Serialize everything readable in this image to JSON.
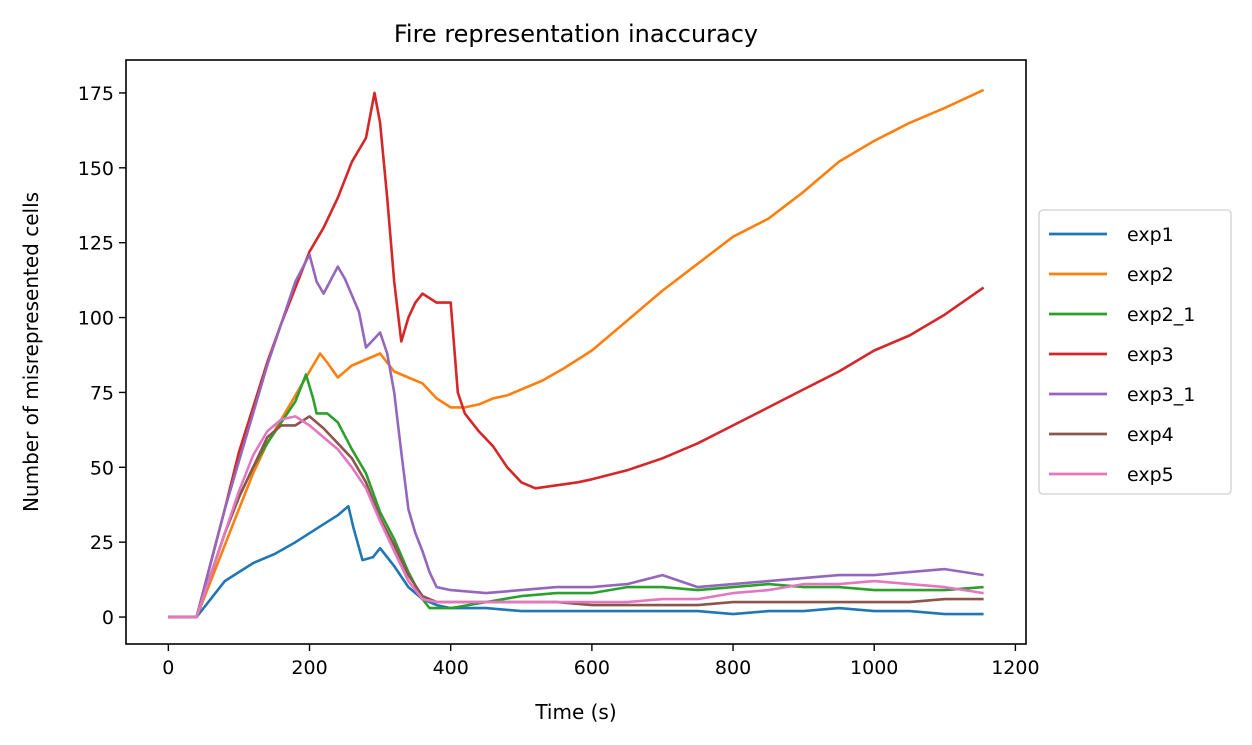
{
  "chart_data": {
    "type": "line",
    "title": "Fire representation inaccuracy",
    "xlabel": "Time (s)",
    "ylabel": "Number of misrepresented cells",
    "xlim": [
      -60,
      1215
    ],
    "ylim": [
      -9,
      186
    ],
    "xticks": [
      0,
      200,
      400,
      600,
      800,
      1000,
      1200
    ],
    "yticks": [
      0,
      25,
      50,
      75,
      100,
      125,
      150,
      175
    ],
    "grid": false,
    "legend_position": "right, outside plot",
    "series": [
      {
        "name": "exp1",
        "color": "#1f77b4",
        "points": [
          [
            0,
            0
          ],
          [
            40,
            0
          ],
          [
            60,
            6
          ],
          [
            80,
            12
          ],
          [
            100,
            15
          ],
          [
            120,
            18
          ],
          [
            150,
            21
          ],
          [
            180,
            25
          ],
          [
            200,
            28
          ],
          [
            220,
            31
          ],
          [
            240,
            34
          ],
          [
            255,
            37
          ],
          [
            262,
            30
          ],
          [
            275,
            19
          ],
          [
            290,
            20
          ],
          [
            300,
            23
          ],
          [
            320,
            17
          ],
          [
            340,
            10
          ],
          [
            360,
            6
          ],
          [
            380,
            4
          ],
          [
            400,
            3
          ],
          [
            450,
            3
          ],
          [
            500,
            2
          ],
          [
            550,
            2
          ],
          [
            600,
            2
          ],
          [
            650,
            2
          ],
          [
            700,
            2
          ],
          [
            750,
            2
          ],
          [
            800,
            1
          ],
          [
            850,
            2
          ],
          [
            900,
            2
          ],
          [
            950,
            3
          ],
          [
            1000,
            2
          ],
          [
            1050,
            2
          ],
          [
            1100,
            1
          ],
          [
            1155,
            1
          ]
        ]
      },
      {
        "name": "exp2",
        "color": "#ff7f0e",
        "points": [
          [
            0,
            0
          ],
          [
            40,
            0
          ],
          [
            60,
            12
          ],
          [
            80,
            24
          ],
          [
            100,
            36
          ],
          [
            120,
            48
          ],
          [
            140,
            58
          ],
          [
            160,
            66
          ],
          [
            180,
            74
          ],
          [
            200,
            82
          ],
          [
            215,
            88
          ],
          [
            225,
            85
          ],
          [
            240,
            80
          ],
          [
            260,
            84
          ],
          [
            280,
            86
          ],
          [
            300,
            88
          ],
          [
            320,
            82
          ],
          [
            340,
            80
          ],
          [
            360,
            78
          ],
          [
            380,
            73
          ],
          [
            400,
            70
          ],
          [
            420,
            70
          ],
          [
            440,
            71
          ],
          [
            460,
            73
          ],
          [
            480,
            74
          ],
          [
            500,
            76
          ],
          [
            530,
            79
          ],
          [
            560,
            83
          ],
          [
            600,
            89
          ],
          [
            650,
            99
          ],
          [
            700,
            109
          ],
          [
            750,
            118
          ],
          [
            800,
            127
          ],
          [
            850,
            133
          ],
          [
            900,
            142
          ],
          [
            950,
            152
          ],
          [
            1000,
            159
          ],
          [
            1050,
            165
          ],
          [
            1100,
            170
          ],
          [
            1155,
            176
          ]
        ]
      },
      {
        "name": "exp2_1",
        "color": "#2ca02c",
        "points": [
          [
            0,
            0
          ],
          [
            40,
            0
          ],
          [
            60,
            14
          ],
          [
            80,
            28
          ],
          [
            100,
            40
          ],
          [
            120,
            50
          ],
          [
            140,
            58
          ],
          [
            160,
            65
          ],
          [
            180,
            72
          ],
          [
            195,
            81
          ],
          [
            205,
            73
          ],
          [
            210,
            68
          ],
          [
            225,
            68
          ],
          [
            240,
            65
          ],
          [
            260,
            56
          ],
          [
            280,
            48
          ],
          [
            300,
            35
          ],
          [
            320,
            26
          ],
          [
            340,
            15
          ],
          [
            360,
            6
          ],
          [
            370,
            3
          ],
          [
            400,
            3
          ],
          [
            450,
            5
          ],
          [
            500,
            7
          ],
          [
            550,
            8
          ],
          [
            600,
            8
          ],
          [
            650,
            10
          ],
          [
            700,
            10
          ],
          [
            750,
            9
          ],
          [
            800,
            10
          ],
          [
            850,
            11
          ],
          [
            900,
            10
          ],
          [
            950,
            10
          ],
          [
            1000,
            9
          ],
          [
            1050,
            9
          ],
          [
            1100,
            9
          ],
          [
            1155,
            10
          ]
        ]
      },
      {
        "name": "exp3",
        "color": "#d62728",
        "points": [
          [
            0,
            0
          ],
          [
            40,
            0
          ],
          [
            60,
            18
          ],
          [
            80,
            36
          ],
          [
            100,
            55
          ],
          [
            120,
            70
          ],
          [
            140,
            85
          ],
          [
            160,
            98
          ],
          [
            180,
            110
          ],
          [
            200,
            122
          ],
          [
            220,
            130
          ],
          [
            240,
            140
          ],
          [
            260,
            152
          ],
          [
            280,
            160
          ],
          [
            292,
            175
          ],
          [
            300,
            165
          ],
          [
            310,
            140
          ],
          [
            320,
            112
          ],
          [
            330,
            92
          ],
          [
            340,
            100
          ],
          [
            350,
            105
          ],
          [
            360,
            108
          ],
          [
            380,
            105
          ],
          [
            400,
            105
          ],
          [
            410,
            75
          ],
          [
            420,
            68
          ],
          [
            440,
            62
          ],
          [
            460,
            57
          ],
          [
            480,
            50
          ],
          [
            500,
            45
          ],
          [
            520,
            43
          ],
          [
            550,
            44
          ],
          [
            580,
            45
          ],
          [
            600,
            46
          ],
          [
            650,
            49
          ],
          [
            700,
            53
          ],
          [
            750,
            58
          ],
          [
            800,
            64
          ],
          [
            850,
            70
          ],
          [
            900,
            76
          ],
          [
            950,
            82
          ],
          [
            1000,
            89
          ],
          [
            1050,
            94
          ],
          [
            1100,
            101
          ],
          [
            1155,
            110
          ]
        ]
      },
      {
        "name": "exp3_1",
        "color": "#9467bd",
        "points": [
          [
            0,
            0
          ],
          [
            40,
            0
          ],
          [
            60,
            18
          ],
          [
            80,
            36
          ],
          [
            100,
            52
          ],
          [
            120,
            68
          ],
          [
            140,
            84
          ],
          [
            160,
            98
          ],
          [
            180,
            112
          ],
          [
            200,
            121
          ],
          [
            210,
            112
          ],
          [
            220,
            108
          ],
          [
            240,
            117
          ],
          [
            250,
            113
          ],
          [
            270,
            102
          ],
          [
            280,
            90
          ],
          [
            300,
            95
          ],
          [
            310,
            88
          ],
          [
            320,
            75
          ],
          [
            330,
            55
          ],
          [
            340,
            36
          ],
          [
            350,
            28
          ],
          [
            360,
            22
          ],
          [
            370,
            15
          ],
          [
            380,
            10
          ],
          [
            400,
            9
          ],
          [
            450,
            8
          ],
          [
            500,
            9
          ],
          [
            550,
            10
          ],
          [
            600,
            10
          ],
          [
            650,
            11
          ],
          [
            700,
            14
          ],
          [
            750,
            10
          ],
          [
            800,
            11
          ],
          [
            850,
            12
          ],
          [
            900,
            13
          ],
          [
            950,
            14
          ],
          [
            1000,
            14
          ],
          [
            1050,
            15
          ],
          [
            1100,
            16
          ],
          [
            1155,
            14
          ]
        ]
      },
      {
        "name": "exp4",
        "color": "#8c564b",
        "points": [
          [
            0,
            0
          ],
          [
            40,
            0
          ],
          [
            60,
            14
          ],
          [
            80,
            28
          ],
          [
            100,
            40
          ],
          [
            120,
            50
          ],
          [
            140,
            60
          ],
          [
            160,
            64
          ],
          [
            180,
            64
          ],
          [
            200,
            67
          ],
          [
            220,
            63
          ],
          [
            240,
            58
          ],
          [
            260,
            53
          ],
          [
            280,
            45
          ],
          [
            300,
            33
          ],
          [
            320,
            24
          ],
          [
            340,
            14
          ],
          [
            360,
            7
          ],
          [
            380,
            5
          ],
          [
            400,
            5
          ],
          [
            450,
            5
          ],
          [
            500,
            5
          ],
          [
            550,
            5
          ],
          [
            600,
            4
          ],
          [
            650,
            4
          ],
          [
            700,
            4
          ],
          [
            750,
            4
          ],
          [
            800,
            5
          ],
          [
            850,
            5
          ],
          [
            900,
            5
          ],
          [
            950,
            5
          ],
          [
            1000,
            5
          ],
          [
            1050,
            5
          ],
          [
            1100,
            6
          ],
          [
            1155,
            6
          ]
        ]
      },
      {
        "name": "exp5",
        "color": "#e377c2",
        "points": [
          [
            0,
            0
          ],
          [
            40,
            0
          ],
          [
            60,
            14
          ],
          [
            80,
            28
          ],
          [
            100,
            42
          ],
          [
            120,
            54
          ],
          [
            140,
            62
          ],
          [
            160,
            66
          ],
          [
            180,
            67
          ],
          [
            200,
            64
          ],
          [
            220,
            60
          ],
          [
            240,
            56
          ],
          [
            260,
            50
          ],
          [
            280,
            43
          ],
          [
            300,
            32
          ],
          [
            320,
            22
          ],
          [
            340,
            12
          ],
          [
            360,
            6
          ],
          [
            380,
            5
          ],
          [
            400,
            5
          ],
          [
            450,
            5
          ],
          [
            500,
            5
          ],
          [
            550,
            5
          ],
          [
            600,
            5
          ],
          [
            650,
            5
          ],
          [
            700,
            6
          ],
          [
            750,
            6
          ],
          [
            800,
            8
          ],
          [
            850,
            9
          ],
          [
            900,
            11
          ],
          [
            950,
            11
          ],
          [
            1000,
            12
          ],
          [
            1050,
            11
          ],
          [
            1100,
            10
          ],
          [
            1155,
            8
          ]
        ]
      }
    ]
  }
}
